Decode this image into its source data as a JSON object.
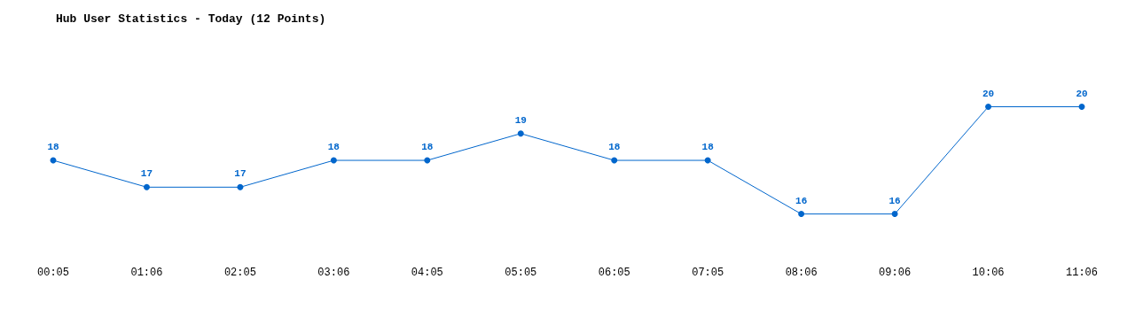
{
  "chart_data": {
    "type": "line",
    "title": "Hub User Statistics - Today (12 Points)",
    "categories": [
      "00:05",
      "01:06",
      "02:05",
      "03:06",
      "04:05",
      "05:05",
      "06:05",
      "07:05",
      "08:06",
      "09:06",
      "10:06",
      "11:06"
    ],
    "series": [
      {
        "color": "#0066cc",
        "values": [
          18,
          17,
          17,
          18,
          18,
          19,
          18,
          18,
          16,
          16,
          20,
          20
        ]
      }
    ],
    "data_labels": true,
    "marker": "circle",
    "line_style": "solid",
    "grid": false
  }
}
